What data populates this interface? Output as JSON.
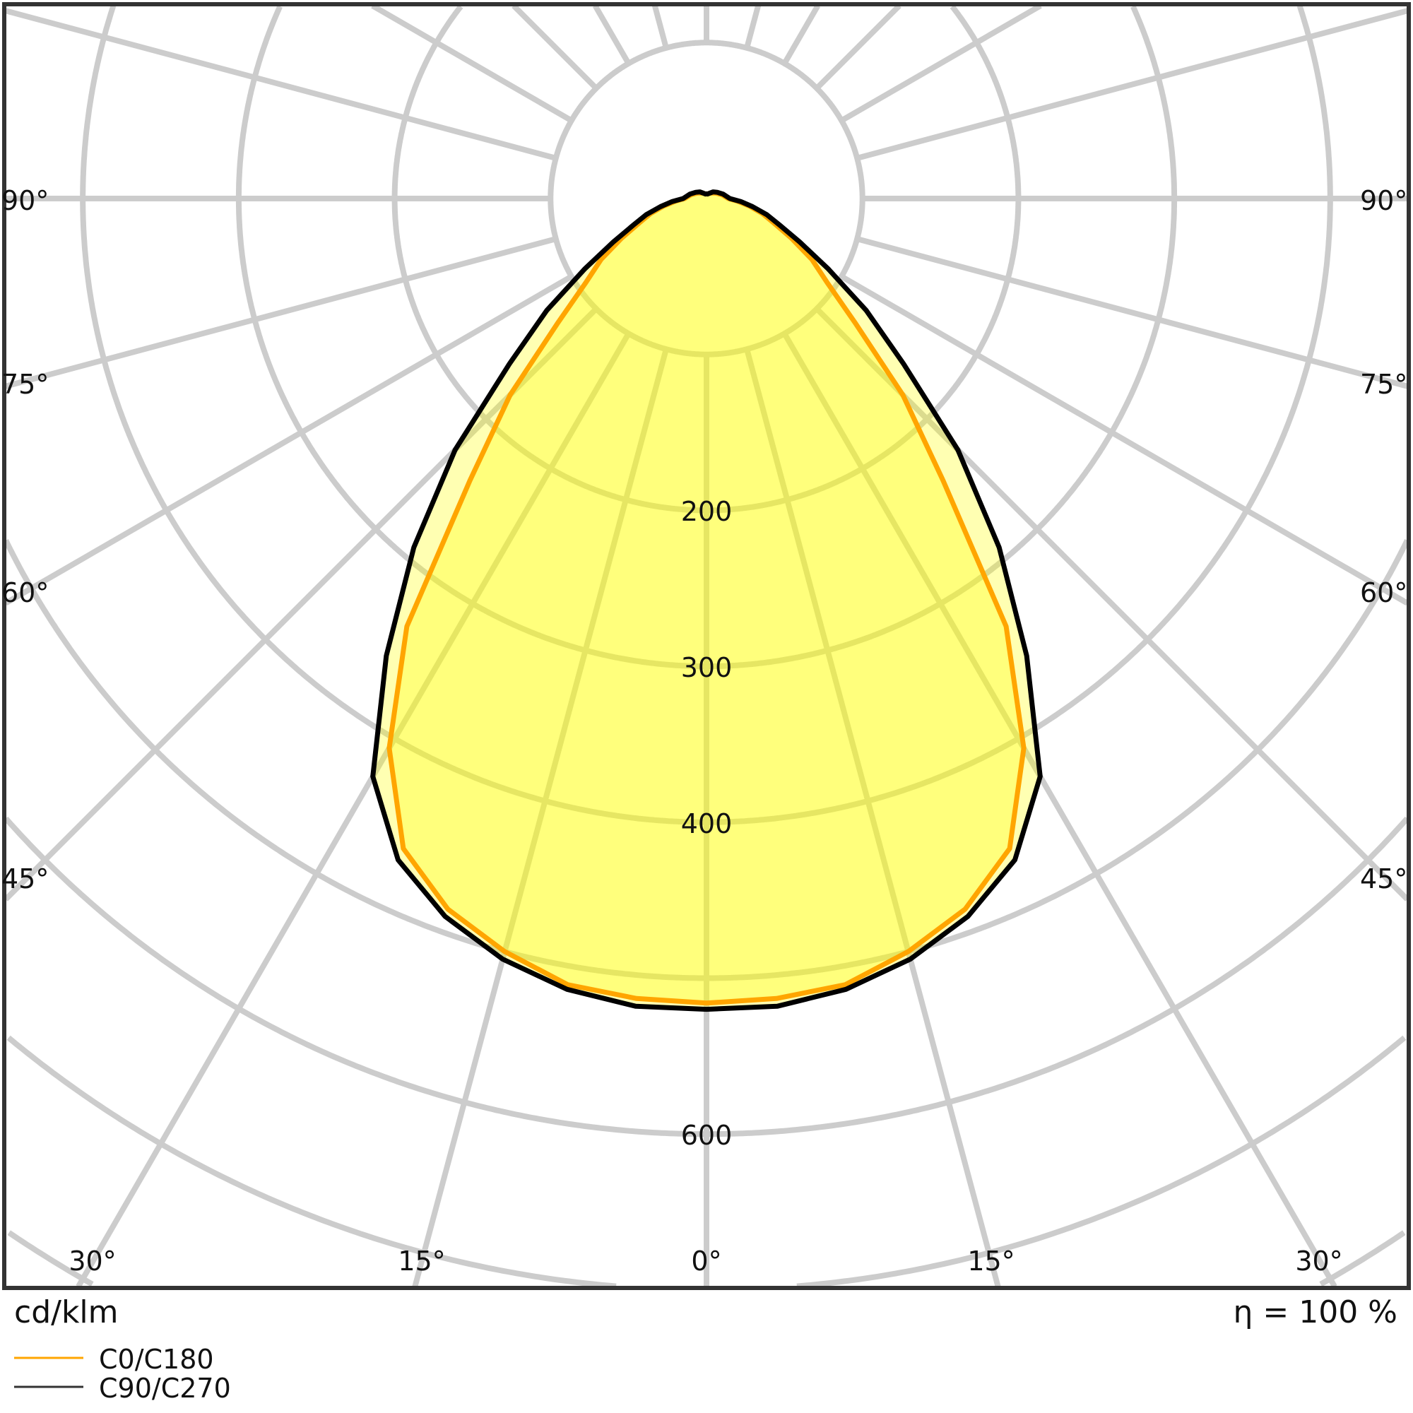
{
  "chart_data": {
    "type": "polar",
    "unit_label": "cd/klm",
    "efficiency_label": "η = 100 %",
    "radial_ticks": [
      100,
      200,
      300,
      400,
      500,
      600,
      700,
      800,
      900
    ],
    "radial_tick_labels": [
      "200",
      "300",
      "400",
      "600"
    ],
    "angle_labels_side": [
      "90°",
      "75°",
      "60°",
      "45°"
    ],
    "angle_labels_bottom": [
      "30°",
      "15°",
      "0°",
      "15°",
      "30°"
    ],
    "grid": true,
    "legend_placement": "bottom-left",
    "gamma": [
      0,
      5,
      10,
      15,
      20,
      25,
      30,
      35,
      40,
      45,
      50,
      55,
      60,
      65,
      70,
      75,
      80,
      85,
      90,
      105,
      120,
      135,
      150,
      165,
      180
    ],
    "series": [
      {
        "name": "C0/C180",
        "color": "#ffa500",
        "values": [
          516,
          515,
          512,
          500,
          485,
          460,
          407,
          335,
          236,
          178,
          125,
          95,
          78,
          60,
          46,
          37,
          28,
          20,
          14,
          10,
          7,
          5,
          4,
          3,
          3
        ]
      },
      {
        "name": "C90/C270",
        "color": "#000000",
        "values": [
          520,
          520,
          515,
          505,
          490,
          468,
          428,
          358,
          292,
          228,
          165,
          125,
          90,
          66,
          50,
          40,
          30,
          22,
          15,
          11,
          8,
          6,
          4,
          3,
          3
        ]
      }
    ],
    "fill_color": "#ffff00"
  }
}
